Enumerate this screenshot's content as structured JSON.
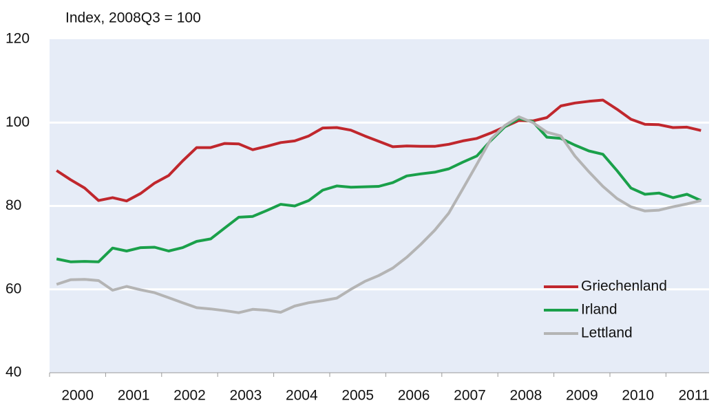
{
  "chart_data": {
    "type": "line",
    "title": "Index, 2008Q3 = 100",
    "categories": [
      "2000",
      null,
      null,
      null,
      "2001",
      null,
      null,
      null,
      "2002",
      null,
      null,
      null,
      "2003",
      null,
      null,
      null,
      "2004",
      null,
      null,
      null,
      "2005",
      null,
      null,
      null,
      "2006",
      null,
      null,
      null,
      "2007",
      null,
      null,
      null,
      "2008",
      null,
      null,
      null,
      "2009",
      null,
      null,
      null,
      "2010",
      null,
      null,
      null,
      "2011",
      null,
      null
    ],
    "series": [
      {
        "name": "Griechenland",
        "color": "#c0272d",
        "values": [
          88.5,
          86.3,
          84.3,
          81.3,
          82,
          81.2,
          83,
          85.5,
          87.3,
          90.8,
          94,
          94,
          95,
          94.9,
          93.5,
          94.3,
          95.2,
          95.6,
          96.8,
          98.7,
          98.8,
          98.2,
          96.8,
          95.5,
          94.2,
          94.4,
          94.3,
          94.3,
          94.8,
          95.6,
          96.2,
          97.5,
          99,
          100.5,
          100.4,
          101.2,
          104,
          104.7,
          105.1,
          105.4,
          103.2,
          100.8,
          99.6,
          99.5,
          98.8,
          98.9,
          98.1
        ]
      },
      {
        "name": "Irland",
        "color": "#1aa04a",
        "values": [
          67.3,
          66.6,
          66.7,
          66.6,
          69.9,
          69.2,
          70,
          70.1,
          69.2,
          70,
          71.5,
          72.1,
          74.7,
          77.3,
          77.5,
          78.9,
          80.4,
          80,
          81.3,
          83.8,
          84.8,
          84.5,
          84.6,
          84.7,
          85.6,
          87.2,
          87.7,
          88.1,
          88.9,
          90.5,
          92,
          95.7,
          99,
          101,
          100.2,
          96.5,
          96.2,
          94.6,
          93.2,
          92.4,
          88.5,
          84.3,
          82.8,
          83.1,
          82,
          82.8,
          81.3
        ]
      },
      {
        "name": "Lettland",
        "color": "#b4b4b4",
        "values": [
          61.2,
          62.3,
          62.4,
          62.1,
          59.8,
          60.7,
          59.9,
          59.2,
          58,
          56.8,
          55.6,
          55.3,
          54.9,
          54.4,
          55.2,
          55,
          54.5,
          56,
          56.8,
          57.3,
          57.9,
          60,
          61.9,
          63.3,
          65.1,
          67.7,
          70.8,
          74.2,
          78.3,
          84.1,
          90,
          96,
          99.3,
          101.4,
          100,
          97.7,
          96.8,
          92,
          88.2,
          84.7,
          81.8,
          79.8,
          78.8,
          79,
          79.8,
          80.5,
          81.3
        ]
      }
    ],
    "ylim": [
      40,
      120
    ],
    "yticks": [
      40,
      60,
      80,
      100,
      120
    ],
    "grid": true,
    "legend": "lower right"
  }
}
